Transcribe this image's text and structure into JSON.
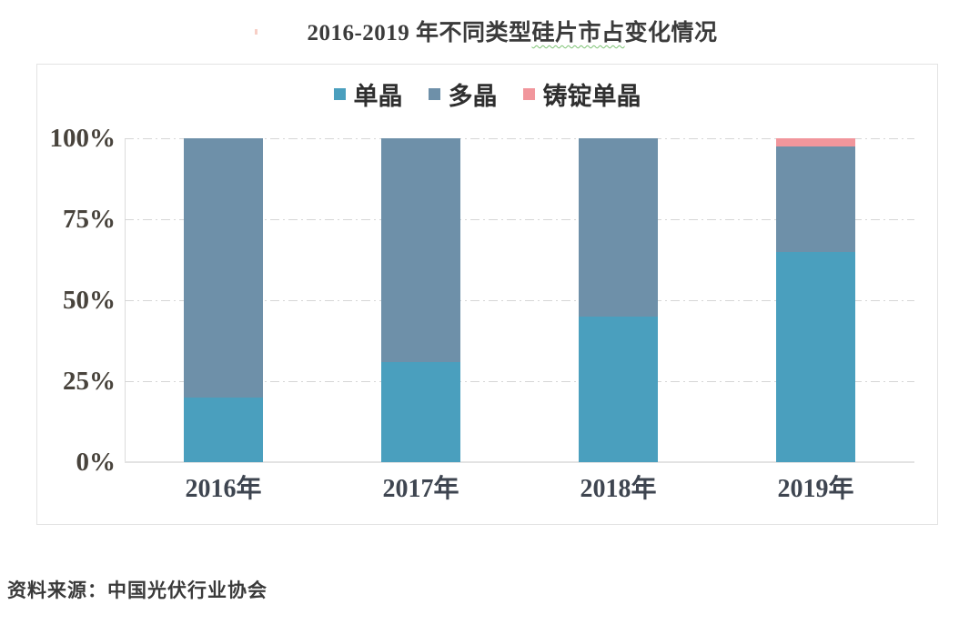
{
  "header": {
    "title_full": "2016-2019 年不同类型硅片市占变化情况",
    "title_pre": "2016-2019 年不同类型",
    "title_wavy": "硅片市占",
    "title_post": "变化情况"
  },
  "chart_data": {
    "type": "bar",
    "stacked": true,
    "title": "2016-2019 年不同类型硅片市占变化情况",
    "categories": [
      "2016年",
      "2017年",
      "2018年",
      "2019年"
    ],
    "series": [
      {
        "name": "单晶",
        "color": "#4A9FBE",
        "values": [
          20,
          31,
          45,
          65
        ]
      },
      {
        "name": "多晶",
        "color": "#6E90A9",
        "values": [
          80,
          69,
          55,
          32.5
        ]
      },
      {
        "name": "铸锭单晶",
        "color": "#F1969C",
        "values": [
          0,
          0,
          0,
          2.5
        ]
      }
    ],
    "y_ticks": [
      0,
      25,
      50,
      75,
      100
    ],
    "y_tick_suffix": "%",
    "ylim": [
      0,
      100
    ],
    "xlabel": "",
    "ylabel": "",
    "grid": "horizontal-dashed",
    "legend_position": "top-center",
    "colors": {
      "grid": "#d6d6d6",
      "axis": "#dcdcdc",
      "baseline": "#e3e3e3"
    }
  },
  "footer": {
    "source": "资料来源：中国光伏行业协会"
  }
}
